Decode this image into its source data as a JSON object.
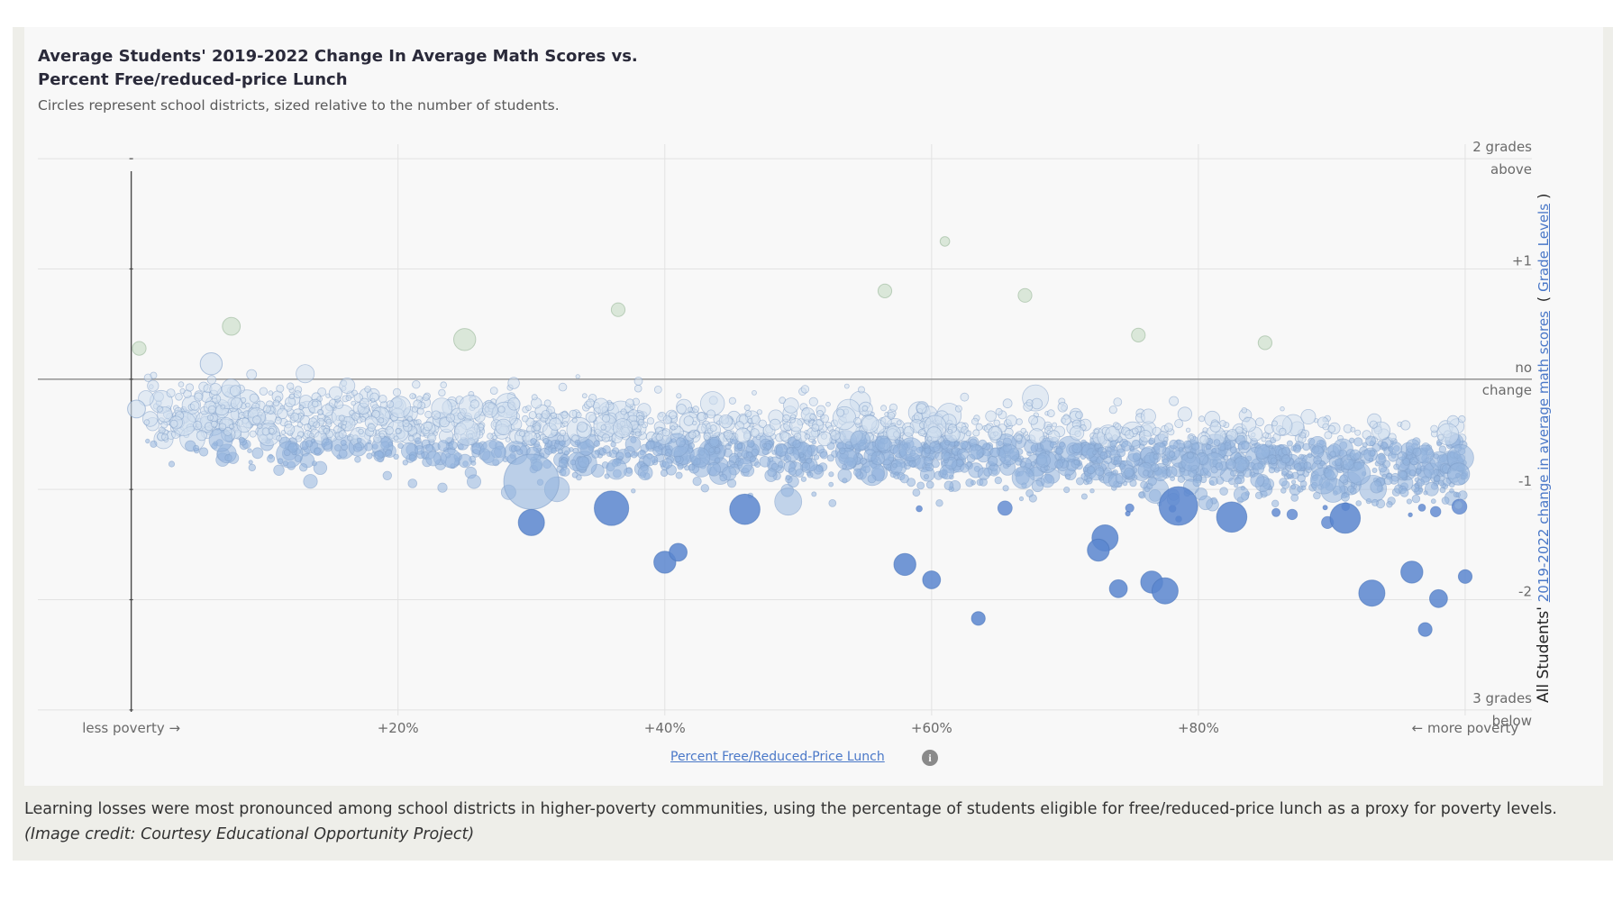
{
  "figure": {
    "title": "Average Students' 2019-2022 Change In Average Math Scores vs. Percent Free/reduced-price Lunch",
    "subtitle": "Circles represent school districts, sized relative to the number of students.",
    "caption": "Learning losses were most pronounced among school districts in higher-poverty communities, using the percentage of students eligible for free/reduced-price lunch as a proxy for poverty levels.",
    "credit": "(Image credit: Courtesy Educational Opportunity Project)",
    "info_icon": "info-circle-icon"
  },
  "colors": {
    "gain_bubble": "#c6dcc4",
    "small_loss_bubble": "#cfdeee",
    "mid_loss_bubble": "#93b4de",
    "large_loss_bubble": "#5b86cf",
    "gridline": "#e2e2e2",
    "link": "#4a78c8"
  },
  "chart_data": {
    "type": "scatter",
    "title": "Average Students' 2019-2022 Change In Average Math Scores vs. Percent Free/reduced-price Lunch",
    "subtitle": "Circles represent school districts, sized relative to the number of students.",
    "xlabel": "Percent Free/Reduced-Price Lunch",
    "ylabel_parts": [
      "All Students'",
      "2019-2022 change in average math scores",
      "Grade Levels"
    ],
    "x_ticks": [
      "less poverty →",
      "+20%",
      "+40%",
      "+60%",
      "+80%",
      "← more poverty"
    ],
    "x_tick_values": [
      0,
      20,
      40,
      60,
      80,
      100
    ],
    "y_ticks": [
      {
        "value": 2,
        "lines": [
          "2 grades",
          "above"
        ]
      },
      {
        "value": 1,
        "lines": [
          "+1"
        ]
      },
      {
        "value": 0,
        "lines": [
          "no",
          "change"
        ]
      },
      {
        "value": -1,
        "lines": [
          "-1"
        ]
      },
      {
        "value": -2,
        "lines": [
          "-2"
        ]
      },
      {
        "value": -3,
        "lines": [
          "3 grades",
          "below"
        ]
      }
    ],
    "xlim": [
      -7,
      105
    ],
    "ylim": [
      -3.05,
      2.05
    ],
    "grid": true,
    "size_encoding": "relative number of students",
    "notable_points": [
      {
        "x": 0.4,
        "y": -0.27,
        "size": 3
      },
      {
        "x": 0.6,
        "y": 0.28,
        "size": 2
      },
      {
        "x": 7.5,
        "y": 0.48,
        "size": 3
      },
      {
        "x": 6,
        "y": 0.14,
        "size": 4
      },
      {
        "x": 25,
        "y": 0.36,
        "size": 4
      },
      {
        "x": 36.5,
        "y": 0.63,
        "size": 2
      },
      {
        "x": 56.5,
        "y": 0.8,
        "size": 2
      },
      {
        "x": 61,
        "y": 1.25,
        "size": 1
      },
      {
        "x": 67,
        "y": 0.76,
        "size": 2
      },
      {
        "x": 75.5,
        "y": 0.4,
        "size": 2
      },
      {
        "x": 85,
        "y": 0.33,
        "size": 2
      },
      {
        "x": 30,
        "y": -0.93,
        "size": 12
      },
      {
        "x": 36,
        "y": -1.17,
        "size": 7
      },
      {
        "x": 46,
        "y": -1.18,
        "size": 6
      },
      {
        "x": 30,
        "y": -1.3,
        "size": 5
      },
      {
        "x": 40,
        "y": -1.66,
        "size": 4
      },
      {
        "x": 41,
        "y": -1.57,
        "size": 3
      },
      {
        "x": 58,
        "y": -1.68,
        "size": 4
      },
      {
        "x": 60,
        "y": -1.82,
        "size": 3
      },
      {
        "x": 63.5,
        "y": -2.17,
        "size": 2
      },
      {
        "x": 73,
        "y": -1.44,
        "size": 5
      },
      {
        "x": 72.5,
        "y": -1.55,
        "size": 4
      },
      {
        "x": 74,
        "y": -1.9,
        "size": 3
      },
      {
        "x": 76.5,
        "y": -1.84,
        "size": 4
      },
      {
        "x": 77.5,
        "y": -1.92,
        "size": 5
      },
      {
        "x": 78.5,
        "y": -1.15,
        "size": 8
      },
      {
        "x": 82.5,
        "y": -1.25,
        "size": 6
      },
      {
        "x": 91,
        "y": -1.26,
        "size": 6
      },
      {
        "x": 93,
        "y": -1.94,
        "size": 5
      },
      {
        "x": 96,
        "y": -1.75,
        "size": 4
      },
      {
        "x": 98,
        "y": -1.99,
        "size": 3
      },
      {
        "x": 100,
        "y": -1.79,
        "size": 2
      },
      {
        "x": 97,
        "y": -2.27,
        "size": 2
      },
      {
        "x": 99.5,
        "y": -0.86,
        "size": 4
      }
    ],
    "distribution": {
      "description": "dense cloud of several thousand districts spanning 0%-100% free/reduced-price lunch",
      "trend_mean_y": [
        {
          "x": 2,
          "y": -0.35
        },
        {
          "x": 20,
          "y": -0.45
        },
        {
          "x": 40,
          "y": -0.55
        },
        {
          "x": 60,
          "y": -0.62
        },
        {
          "x": 80,
          "y": -0.72
        },
        {
          "x": 100,
          "y": -0.78
        }
      ],
      "spread_sd": 0.32,
      "approx_count": 2600
    }
  }
}
